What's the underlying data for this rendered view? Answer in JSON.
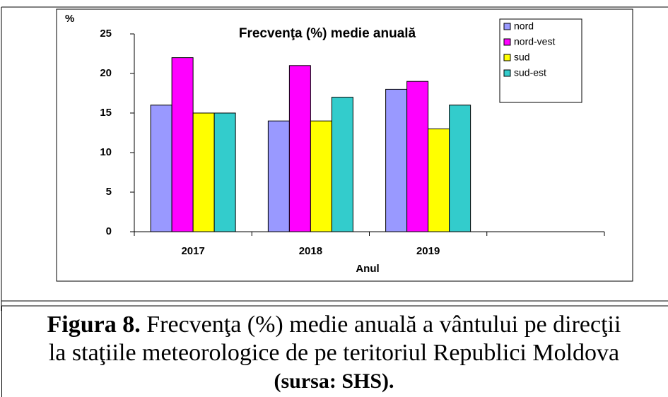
{
  "chart_data": {
    "type": "bar",
    "title": "Frecvenţa (%) medie anuală",
    "y_label": "%",
    "x_label": "Anul",
    "categories": [
      "2017",
      "2018",
      "2019",
      null
    ],
    "series": [
      {
        "name": "nord",
        "color": "#9999ff",
        "values": [
          16,
          14,
          18,
          null
        ]
      },
      {
        "name": "nord-vest",
        "color": "#ff00ff",
        "values": [
          22,
          21,
          19,
          null
        ]
      },
      {
        "name": "sud",
        "color": "#ffff00",
        "values": [
          15,
          14,
          13,
          null
        ]
      },
      {
        "name": "sud-est",
        "color": "#33cccc",
        "values": [
          15,
          17,
          16,
          null
        ]
      }
    ],
    "ylim": [
      0,
      25
    ],
    "yticks": [
      0,
      5,
      10,
      15,
      20,
      25
    ],
    "grid": false,
    "legend": "top-right"
  },
  "caption": {
    "label": "Figura 8.",
    "line1": " Frecvenţa (%) medie anuală a vântului pe direcţii",
    "line2": "la staţiile meteorologice de pe teritoriul Republici Moldova",
    "line3": "(sursa: SHS)."
  }
}
